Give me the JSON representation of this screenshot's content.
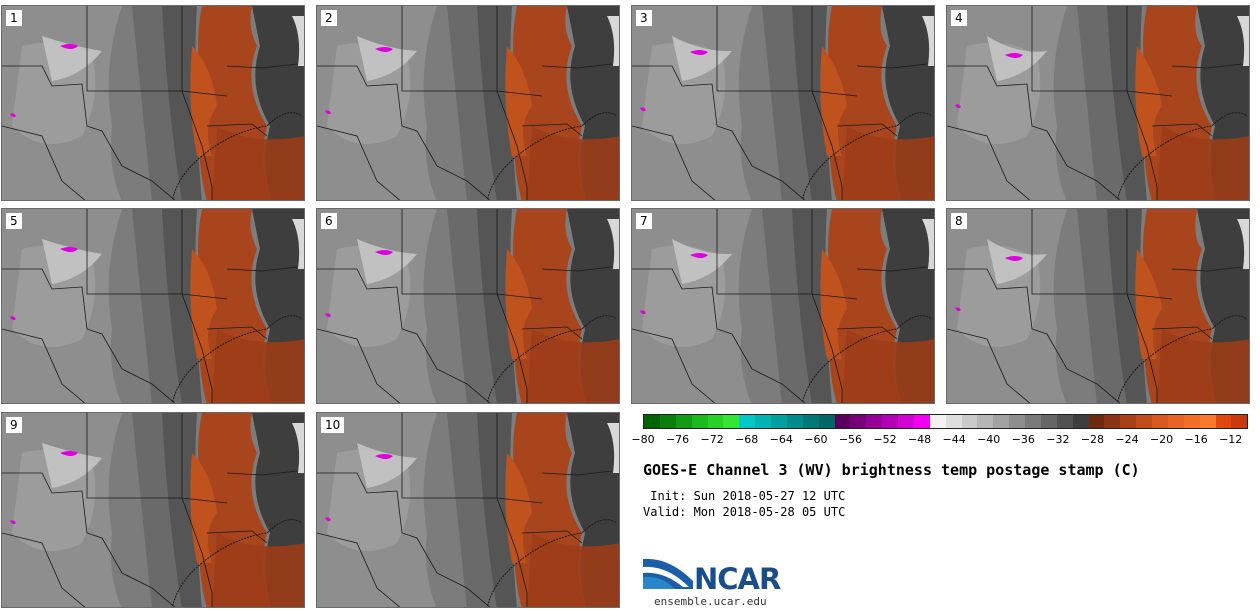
{
  "panels": [
    {
      "label": "1"
    },
    {
      "label": "2"
    },
    {
      "label": "3"
    },
    {
      "label": "4"
    },
    {
      "label": "5"
    },
    {
      "label": "6"
    },
    {
      "label": "7"
    },
    {
      "label": "8"
    },
    {
      "label": "9"
    },
    {
      "label": "10"
    }
  ],
  "colorbar": {
    "ticks": [
      "−80",
      "−76",
      "−72",
      "−68",
      "−64",
      "−60",
      "−56",
      "−52",
      "−48",
      "−44",
      "−40",
      "−36",
      "−32",
      "−28",
      "−24",
      "−20",
      "−16",
      "−12"
    ],
    "colors": [
      "#006400",
      "#0b7e0b",
      "#159a15",
      "#1db81d",
      "#28d028",
      "#33e633",
      "#00c8c8",
      "#00b4b4",
      "#00a0a0",
      "#008c8c",
      "#007878",
      "#006666",
      "#5a005a",
      "#780078",
      "#960096",
      "#b400b4",
      "#d200d2",
      "#f000f0",
      "#f2f2f2",
      "#dedede",
      "#cacaca",
      "#b6b6b6",
      "#a2a2a2",
      "#8e8e8e",
      "#7a7a7a",
      "#666666",
      "#525252",
      "#3e3e3e",
      "#6e2a10",
      "#8a3414",
      "#a84018",
      "#c04c1c",
      "#d85a20",
      "#e86424",
      "#f06e28",
      "#f8782c",
      "#e04810",
      "#c83a0c"
    ]
  },
  "title": "GOES-E Channel 3 (WV) brightness temp postage stamp (C)",
  "init_line": " Init: Sun 2018-05-27 12 UTC",
  "valid_line": "Valid: Mon 2018-05-28 05 UTC",
  "logo": {
    "text": "NCAR",
    "url": "ensemble.ucar.edu"
  }
}
